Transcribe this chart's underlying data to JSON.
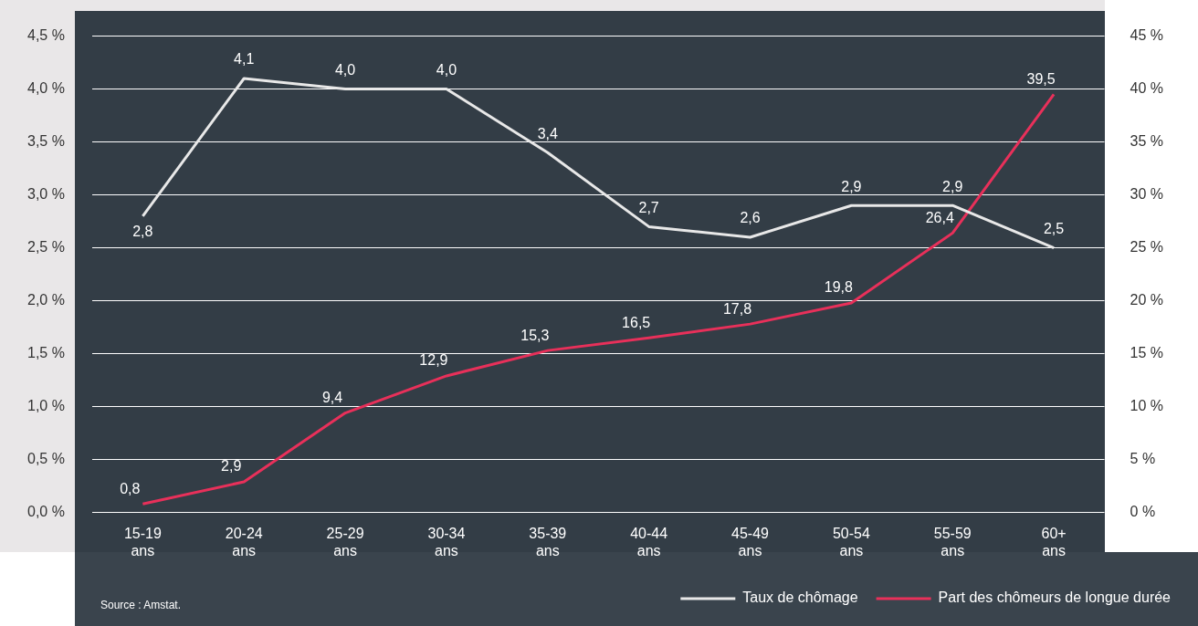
{
  "chart_data": {
    "type": "line",
    "categories": [
      "15-19 ans",
      "20-24 ans",
      "25-29 ans",
      "30-34 ans",
      "35-39 ans",
      "40-44 ans",
      "45-49 ans",
      "50-54 ans",
      "55-59 ans",
      "60+ ans"
    ],
    "series": [
      {
        "name": "Taux de chômage",
        "color": "#e8e8e8",
        "values": [
          2.8,
          4.1,
          4.0,
          4.0,
          3.4,
          2.7,
          2.6,
          2.9,
          2.9,
          2.5
        ],
        "value_labels": [
          "2,8",
          "4,1",
          "4,0",
          "4,0",
          "3,4",
          "2,7",
          "2,6",
          "2,9",
          "2,9",
          "2,5"
        ]
      },
      {
        "name": "Part des chômeurs de longue durée",
        "color": "#e8305a",
        "axis": "y2",
        "values": [
          0.8,
          2.9,
          9.4,
          12.9,
          15.3,
          16.5,
          17.8,
          19.8,
          26.4,
          39.5
        ],
        "value_labels": [
          "0,8",
          "2,9",
          "9,4",
          "12,9",
          "15,3",
          "16,5",
          "17,8",
          "19,8",
          "26,4",
          "39,5"
        ]
      }
    ],
    "ylim": [
      0,
      4.5
    ],
    "yticks": [
      {
        "value": 0,
        "label": "0,0 %"
      },
      {
        "value": 0.5,
        "label": "0,5 %"
      },
      {
        "value": 1,
        "label": "1,0 %"
      },
      {
        "value": 1.5,
        "label": "1,5 %"
      },
      {
        "value": 2,
        "label": "2,0 %"
      },
      {
        "value": 2.5,
        "label": "2,5 %"
      },
      {
        "value": 3,
        "label": "3,0 %"
      },
      {
        "value": 3.5,
        "label": "3,5 %"
      },
      {
        "value": 4,
        "label": "4,0 %"
      },
      {
        "value": 4.5,
        "label": "4,5 %"
      }
    ],
    "y2lim": [
      0,
      45
    ],
    "y2ticks": [
      {
        "value": 0,
        "label": "0 %"
      },
      {
        "value": 5,
        "label": "5 %"
      },
      {
        "value": 10,
        "label": "10 %"
      },
      {
        "value": 15,
        "label": "15 %"
      },
      {
        "value": 20,
        "label": "20 %"
      },
      {
        "value": 25,
        "label": "25 %"
      },
      {
        "value": 30,
        "label": "30 %"
      },
      {
        "value": 35,
        "label": "35 %"
      },
      {
        "value": 40,
        "label": "40 %"
      },
      {
        "value": 45,
        "label": "45 %"
      }
    ],
    "grid": "y",
    "legend": "bottom right",
    "marker": "none",
    "line_style": "solid",
    "annotations": [
      "Source : Amstat."
    ]
  }
}
